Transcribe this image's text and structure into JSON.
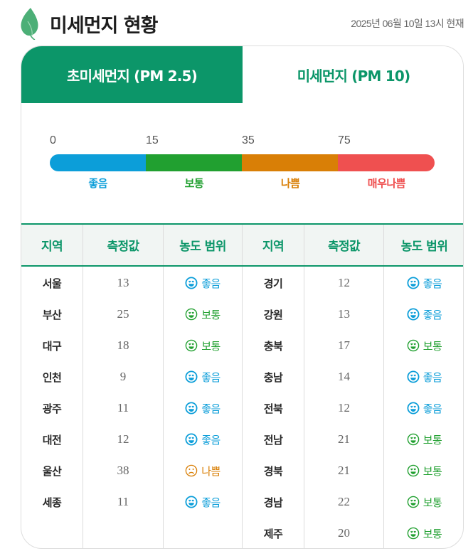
{
  "header": {
    "title": "미세먼지 현황",
    "timestamp": "2025년 06월 10일 13시 현재",
    "icon": "leaf-icon"
  },
  "tabs": [
    {
      "label": "초미세먼지 (PM 2.5)",
      "active": true
    },
    {
      "label": "미세먼지 (PM 10)",
      "active": false
    }
  ],
  "colors": {
    "brand": "#0c9669",
    "good": "#0c9ed9",
    "normal": "#21a030",
    "bad": "#d97f06",
    "very_bad": "#ef5050"
  },
  "scale": {
    "ticks": [
      "0",
      "15",
      "35",
      "75"
    ],
    "grades": [
      {
        "label": "좋음",
        "color": "#0c9ed9"
      },
      {
        "label": "보통",
        "color": "#21a030"
      },
      {
        "label": "나쁨",
        "color": "#d97f06"
      },
      {
        "label": "매우나쁨",
        "color": "#ef5050"
      }
    ]
  },
  "table": {
    "headers": [
      "지역",
      "측정값",
      "농도 범위",
      "지역",
      "측정값",
      "농도 범위"
    ],
    "left": [
      {
        "region": "서울",
        "value": "13",
        "grade": "좋음",
        "icon": "smile-heart-eyes-filled-icon"
      },
      {
        "region": "부산",
        "value": "25",
        "grade": "보통",
        "icon": "smile-heart-eyes-outline-icon"
      },
      {
        "region": "대구",
        "value": "18",
        "grade": "보통",
        "icon": "smile-heart-eyes-outline-icon"
      },
      {
        "region": "인천",
        "value": "9",
        "grade": "좋음",
        "icon": "smile-heart-eyes-filled-icon"
      },
      {
        "region": "광주",
        "value": "11",
        "grade": "좋음",
        "icon": "smile-heart-eyes-filled-icon"
      },
      {
        "region": "대전",
        "value": "12",
        "grade": "좋음",
        "icon": "smile-heart-eyes-filled-icon"
      },
      {
        "region": "울산",
        "value": "38",
        "grade": "나쁨",
        "icon": "sad-face-icon"
      },
      {
        "region": "세종",
        "value": "11",
        "grade": "좋음",
        "icon": "smile-heart-eyes-filled-icon"
      }
    ],
    "right": [
      {
        "region": "경기",
        "value": "12",
        "grade": "좋음",
        "icon": "smile-heart-eyes-filled-icon"
      },
      {
        "region": "강원",
        "value": "13",
        "grade": "좋음",
        "icon": "smile-heart-eyes-filled-icon"
      },
      {
        "region": "충북",
        "value": "17",
        "grade": "보통",
        "icon": "smile-heart-eyes-outline-icon"
      },
      {
        "region": "충남",
        "value": "14",
        "grade": "좋음",
        "icon": "smile-heart-eyes-filled-icon"
      },
      {
        "region": "전북",
        "value": "12",
        "grade": "좋음",
        "icon": "smile-heart-eyes-filled-icon"
      },
      {
        "region": "전남",
        "value": "21",
        "grade": "보통",
        "icon": "smile-heart-eyes-outline-icon"
      },
      {
        "region": "경북",
        "value": "21",
        "grade": "보통",
        "icon": "smile-heart-eyes-outline-icon"
      },
      {
        "region": "경남",
        "value": "22",
        "grade": "보통",
        "icon": "smile-heart-eyes-outline-icon"
      },
      {
        "region": "제주",
        "value": "20",
        "grade": "보통",
        "icon": "smile-heart-eyes-outline-icon"
      }
    ]
  }
}
